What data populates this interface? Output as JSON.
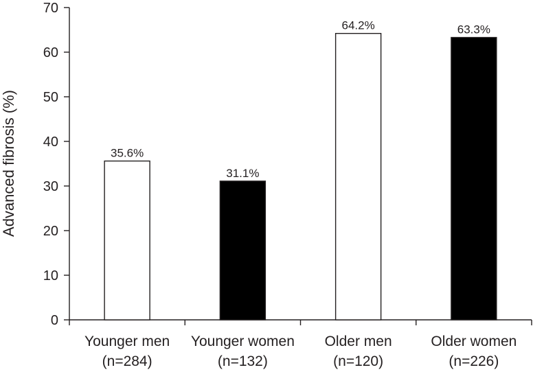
{
  "chart_data": {
    "type": "bar",
    "ylabel": "Advanced fibrosis (%)",
    "xlabel": "",
    "ylim": [
      0,
      70
    ],
    "yticks": [
      0,
      10,
      20,
      30,
      40,
      50,
      60,
      70
    ],
    "grid": false,
    "categories": [
      [
        "Younger men",
        "(n=284)"
      ],
      [
        "Younger women",
        "(n=132)"
      ],
      [
        "Older men",
        "(n=120)"
      ],
      [
        "Older women",
        "(n=226)"
      ]
    ],
    "values": [
      35.6,
      31.1,
      64.2,
      63.3
    ],
    "data_labels": [
      "35.6%",
      "31.1%",
      "64.2%",
      "63.3%"
    ],
    "bar_fill": [
      "#ffffff",
      "#000000",
      "#ffffff",
      "#000000"
    ],
    "edge_color": "#231f20"
  }
}
